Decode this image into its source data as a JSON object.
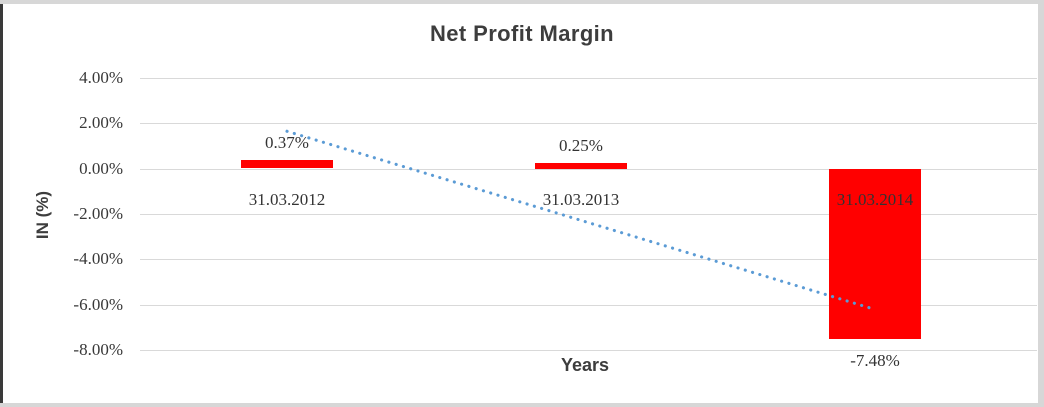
{
  "chart_data": {
    "type": "bar",
    "title": "Net Profit Margin",
    "xlabel": "Years",
    "ylabel": "IN (%)",
    "categories": [
      "31.03.2012",
      "31.03.2013",
      "31.03.2014"
    ],
    "values": [
      0.37,
      0.25,
      -7.48
    ],
    "data_labels": [
      "0.37%",
      "0.25%",
      "-7.48%"
    ],
    "y_tick_labels": [
      "4.00%",
      "2.00%",
      "0.00%",
      "-2.00%",
      "-4.00%",
      "-6.00%",
      "-8.00%"
    ],
    "y_tick_values": [
      4,
      2,
      0,
      -2,
      -4,
      -6,
      -8
    ],
    "ylim": [
      -8,
      4
    ],
    "grid": true,
    "legend_position": "none",
    "bar_color": "#ff0000",
    "gridline_color": "#d9d9d9",
    "text_color": "#3d3d3d",
    "trendline": {
      "type": "linear",
      "style": "dotted",
      "color": "#5b9bd5",
      "start_value": 1.64,
      "end_value": -6.21
    }
  }
}
